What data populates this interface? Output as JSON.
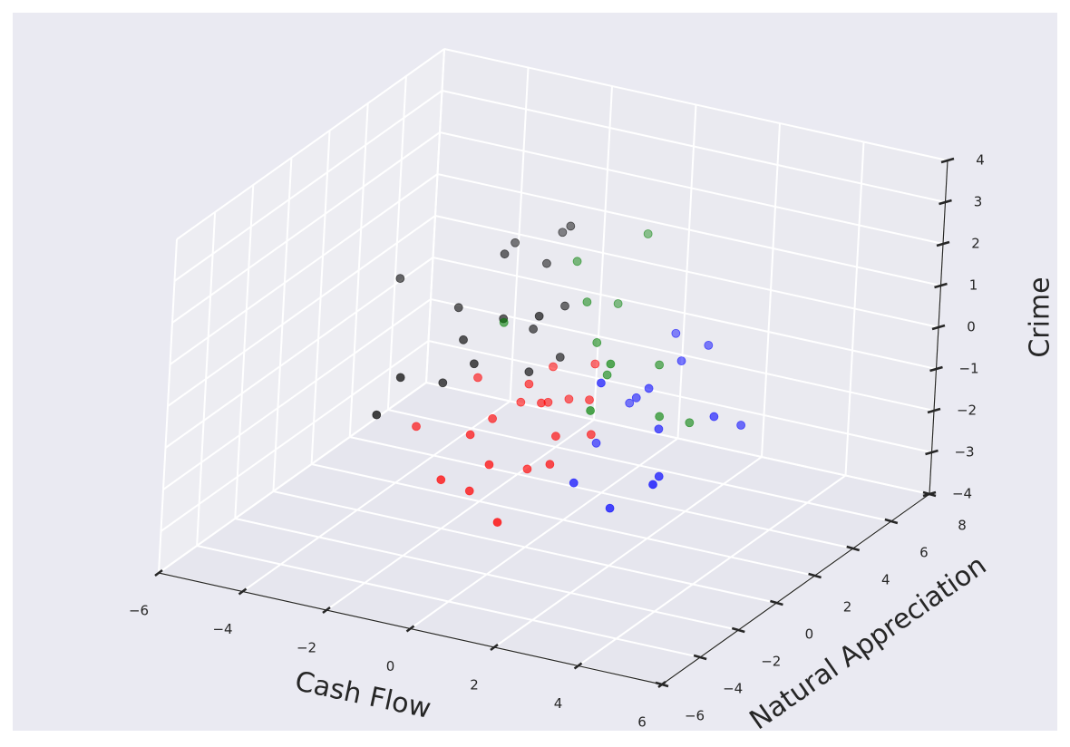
{
  "chart_data": {
    "type": "scatter3d",
    "xlabel": "Cash Flow",
    "ylabel": "Natural Appreciation",
    "zlabel": "Crime",
    "xlim": [
      -6,
      6
    ],
    "ylim": [
      -6,
      8
    ],
    "zlim": [
      -4,
      4
    ],
    "xticks": [
      {
        "value": -6,
        "label": "−6"
      },
      {
        "value": -4,
        "label": "−4"
      },
      {
        "value": -2,
        "label": "−2"
      },
      0,
      2,
      4,
      6
    ],
    "yticks": [
      {
        "value": -6,
        "label": "−6"
      },
      {
        "value": -4,
        "label": "−4"
      },
      {
        "value": -2,
        "label": "−2"
      },
      0,
      2,
      4,
      6,
      8
    ],
    "zticks": [
      {
        "value": -4,
        "label": "−4"
      },
      {
        "value": -3,
        "label": "−3"
      },
      {
        "value": -2,
        "label": "−2"
      },
      {
        "value": -1,
        "label": "−1"
      },
      0,
      1,
      2,
      3,
      4
    ],
    "grid": true,
    "series": [
      {
        "color": "#ff0000",
        "x": [
          0.2,
          -0.5,
          0.8,
          1.2,
          -1.0,
          0.0,
          0.5,
          -0.3,
          1.5,
          -1.5,
          0.3,
          -0.8,
          0.9,
          -0.2,
          1.0,
          -2.5,
          -1.2,
          0.4,
          0.1,
          -0.6
        ],
        "y": [
          0.0,
          0.5,
          -0.5,
          0.3,
          -1.0,
          1.0,
          0.8,
          -1.5,
          -0.2,
          0.4,
          -0.8,
          -0.3,
          1.2,
          0.2,
          -1.2,
          -0.5,
          -2.0,
          -2.5,
          0.6,
          -1.8
        ],
        "z": [
          -0.5,
          -0.8,
          -1.0,
          -0.3,
          -1.2,
          0.0,
          -0.6,
          -1.6,
          -0.9,
          -0.4,
          -1.8,
          -1.0,
          0.2,
          -0.2,
          -1.4,
          -1.5,
          -2.0,
          -2.5,
          -0.7,
          -2.2
        ]
      },
      {
        "color": "#000000",
        "x": [
          -0.8,
          -0.3,
          -1.5,
          0.2,
          -1.0,
          -2.0,
          0.0,
          -0.5,
          -1.2,
          -3.5,
          -2.5,
          -0.2,
          -1.8,
          0.5,
          -0.6,
          -2.8,
          -1.4,
          0.3
        ],
        "y": [
          0.0,
          0.5,
          -0.5,
          1.0,
          -1.0,
          0.3,
          -0.3,
          1.5,
          0.8,
          0.5,
          -1.5,
          2.0,
          -0.8,
          0.2,
          2.5,
          -2.0,
          1.8,
          -0.6
        ],
        "z": [
          1.3,
          1.0,
          0.8,
          1.5,
          0.5,
          1.2,
          0.3,
          2.2,
          2.5,
          1.5,
          0.0,
          3.0,
          -0.2,
          0.6,
          2.6,
          -0.8,
          2.4,
          1.8
        ]
      },
      {
        "color": "#0000ff",
        "x": [
          2.0,
          2.5,
          1.5,
          3.0,
          1.8,
          2.8,
          3.5,
          1.2,
          2.2,
          4.2,
          3.8,
          1.5,
          2.6,
          3.2,
          4.5
        ],
        "y": [
          1.0,
          0.5,
          1.8,
          0.0,
          -0.5,
          1.5,
          -1.0,
          0.8,
          2.5,
          0.2,
          -2.0,
          -1.0,
          -1.5,
          2.0,
          1.0
        ],
        "z": [
          -0.3,
          0.2,
          -0.8,
          -0.5,
          0.5,
          0.6,
          -1.2,
          -1.5,
          0.8,
          0.0,
          -1.0,
          -1.8,
          -2.0,
          0.9,
          -0.4
        ]
      },
      {
        "color": "#008000",
        "x": [
          1.0,
          0.5,
          1.5,
          0.0,
          2.0,
          1.2,
          3.0,
          0.8,
          2.5,
          -1.0,
          1.8,
          3.5
        ],
        "y": [
          1.0,
          1.5,
          0.5,
          2.0,
          -0.5,
          3.0,
          0.0,
          2.5,
          1.0,
          0.5,
          -1.0,
          0.5
        ],
        "z": [
          0.8,
          1.5,
          0.3,
          2.2,
          1.0,
          2.8,
          -0.2,
          1.2,
          0.6,
          1.0,
          0.0,
          -0.4
        ]
      }
    ]
  }
}
